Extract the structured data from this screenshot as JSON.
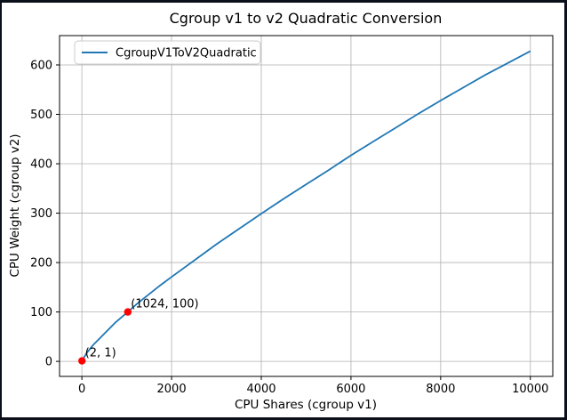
{
  "chart_data": {
    "type": "line",
    "title": "Cgroup v1 to v2 Quadratic Conversion",
    "xlabel": "CPU Shares (cgroup v1)",
    "ylabel": "CPU Weight (cgroup v2)",
    "legend_position": "upper left",
    "grid": true,
    "xlim": [
      -498,
      10500
    ],
    "ylim": [
      -30.4,
      659.4
    ],
    "xticks": [
      0,
      2000,
      4000,
      6000,
      8000,
      10000
    ],
    "yticks": [
      0,
      100,
      200,
      300,
      400,
      500,
      600
    ],
    "colors": {
      "line": "#1f77b4",
      "marker": "#ff0000",
      "grid": "#b0b0b0",
      "spine": "#000000",
      "background": "#ffffff",
      "window_border": "#0b0f1a"
    },
    "series": [
      {
        "name": "CgroupV1ToV2Quadratic",
        "color": "#1f77b4",
        "x": [
          2,
          100,
          250,
          500,
          750,
          1024,
          1250,
          1500,
          1750,
          2000,
          2500,
          3000,
          3500,
          4000,
          4500,
          5000,
          5500,
          6000,
          6500,
          7000,
          7500,
          8000,
          8500,
          9000,
          9500,
          10000
        ],
        "y": [
          1,
          16,
          33,
          56,
          79,
          100,
          118,
          136,
          154,
          171,
          204,
          237,
          268,
          299,
          329,
          358,
          387,
          417,
          445,
          473,
          501,
          528,
          554,
          580,
          604,
          628
        ]
      }
    ],
    "highlight_points": [
      {
        "x": 2,
        "y": 1,
        "label": "(2, 1)"
      },
      {
        "x": 1024,
        "y": 100,
        "label": "(1024, 100)"
      }
    ]
  }
}
